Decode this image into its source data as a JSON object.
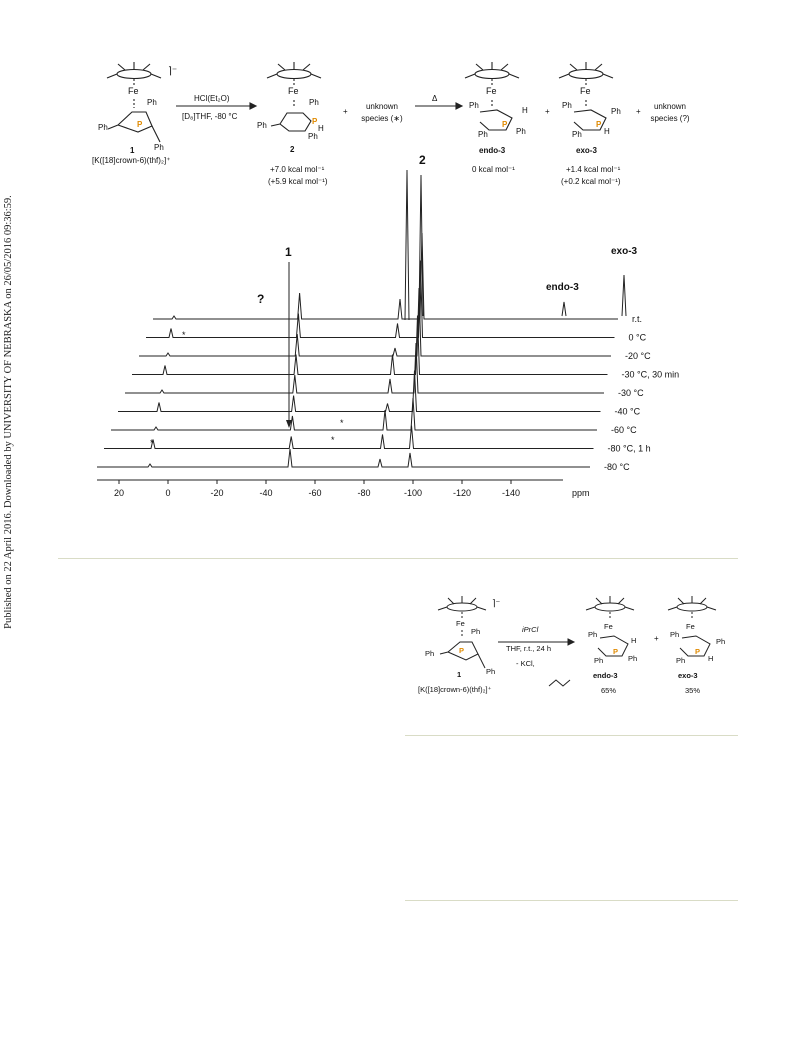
{
  "sidebar_text": "Published on 22 April 2016. Downloaded by UNIVERSITY OF NEBRASKA on 26/05/2016 09:36:59.",
  "scheme1": {
    "cmpd1_label": "1",
    "cmpd1_counterion": "[K([18]crown-6)(thf)₂]⁺",
    "charge": "⌉⁻",
    "arrow1_top": "HCl(Et₂O)",
    "arrow1_bottom": "[D₈]THF, -80 °C",
    "cmpd2_label": "2",
    "cmpd2_energy1": "+7.0 kcal mol⁻¹",
    "cmpd2_energy2": "(+5.9 kcal mol⁻¹)",
    "plus1": "+",
    "unknown1_line1": "unknown",
    "unknown1_line2": "species (∗)",
    "arrow2_top": "Δ",
    "endo_label": "endo-3",
    "endo_energy": "0 kcal mol⁻¹",
    "plus2": "+",
    "exo_label": "exo-3",
    "exo_energy1": "+1.4 kcal mol⁻¹",
    "exo_energy2": "(+0.2 kcal mol⁻¹)",
    "plus3": "+",
    "unknown2_line1": "unknown",
    "unknown2_line2": "species (?)"
  },
  "atoms": {
    "fe": "Fe",
    "p": "P",
    "h": "H",
    "ph": "Ph"
  },
  "nmr": {
    "peak_labels": {
      "p1": "1",
      "p2": "2",
      "endo": "endo-3",
      "exo": "exo-3",
      "question": "?",
      "star": "*"
    },
    "axis_unit": "ppm",
    "ticks": [
      "20",
      "0",
      "-20",
      "-40",
      "-60",
      "-80",
      "-100",
      "-120",
      "-140"
    ],
    "traces": [
      "r.t.",
      "0 °C",
      "-20 °C",
      "-30 °C, 30 min",
      "-30 °C",
      "-40 °C",
      "-60 °C",
      "-80 °C, 1 h",
      "-80 °C"
    ]
  },
  "scheme2": {
    "charge": "⌉⁻",
    "arrow_top": "iPrCl",
    "arrow_mid": "THF, r.t., 24 h",
    "arrow_bottom": "- KCl,",
    "cmpd1_label": "1",
    "cmpd1_counterion": "[K([18]crown-6)(thf)₂]⁺",
    "endo_label": "endo-3",
    "endo_yield": "65%",
    "plus": "+",
    "exo_label": "exo-3",
    "exo_yield": "35%"
  }
}
